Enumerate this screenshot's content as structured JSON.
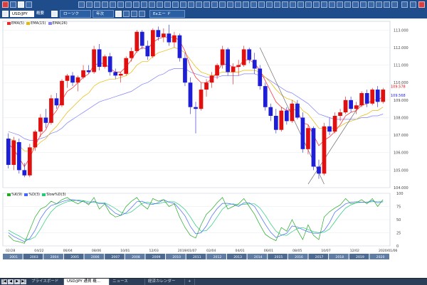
{
  "toolbar": {
    "symbol": "USD/JPY",
    "mode": "概要",
    "tab_chart": "ローソク",
    "tab_period": "年次",
    "tab_export": "Exエー ド",
    "colors": {
      "bar": "#1f4d8c",
      "hot": "#d94040"
    }
  },
  "main_legend": {
    "items": [
      {
        "label": "EMA(5)",
        "color": "#ff2020"
      },
      {
        "label": "EMA(15)",
        "color": "#e6b800"
      },
      {
        "label": "EMA(26)",
        "color": "#8080ff"
      }
    ]
  },
  "price_axis": [
    "113.000",
    "112.000",
    "111.000",
    "110.000",
    "109.000",
    "108.000",
    "107.000",
    "106.000",
    "105.000",
    "104.000"
  ],
  "price_tags": {
    "upper": "109.578",
    "lower": "109.568"
  },
  "sub_legend": {
    "items": [
      {
        "label": "%K(9)",
        "color": "#22aa22"
      },
      {
        "label": "%D(3)",
        "color": "#4466ff"
      },
      {
        "label": "Slow%D(3)",
        "color": "#22cc77"
      }
    ]
  },
  "sub_axis": [
    "100",
    "75",
    "50",
    "25",
    "0"
  ],
  "date_labels": [
    "02/28",
    "04/22",
    "06/04",
    "08/06",
    "10/01",
    "12/03",
    "2019/01/07",
    "02/04",
    "04/01",
    "06/01",
    "08/05",
    "10/07",
    "12/02",
    "2020/01/06"
  ],
  "year_labels": [
    "2001",
    "2003",
    "2004",
    "2005",
    "2006",
    "2007",
    "2008",
    "2009",
    "2010",
    "2011",
    "2012",
    "2013",
    "2014",
    "2015",
    "2016",
    "2017",
    "2018",
    "2019",
    "2020"
  ],
  "status": {
    "tab1": "プライスボード",
    "tab2": "USD/JPY 通貨 概...",
    "tab3": "ニュース",
    "tab4": "経済カレンダー",
    "add": "+"
  },
  "chart_data": {
    "type": "candlestick",
    "ylim": [
      104.0,
      113.5
    ],
    "candles": [
      {
        "o": 106.8,
        "h": 107.1,
        "l": 105.1,
        "c": 105.3
      },
      {
        "o": 105.3,
        "h": 106.9,
        "l": 105.0,
        "c": 106.7
      },
      {
        "o": 106.6,
        "h": 106.8,
        "l": 104.8,
        "c": 105.0
      },
      {
        "o": 105.0,
        "h": 105.4,
        "l": 104.6,
        "c": 104.7
      },
      {
        "o": 104.7,
        "h": 106.5,
        "l": 104.6,
        "c": 106.3
      },
      {
        "o": 106.3,
        "h": 107.3,
        "l": 106.1,
        "c": 107.2
      },
      {
        "o": 107.2,
        "h": 108.2,
        "l": 106.9,
        "c": 108.0
      },
      {
        "o": 108.0,
        "h": 108.5,
        "l": 107.4,
        "c": 107.7
      },
      {
        "o": 107.7,
        "h": 109.3,
        "l": 107.6,
        "c": 109.1
      },
      {
        "o": 109.1,
        "h": 109.4,
        "l": 108.5,
        "c": 108.7
      },
      {
        "o": 108.7,
        "h": 110.2,
        "l": 108.6,
        "c": 110.1
      },
      {
        "o": 110.1,
        "h": 110.5,
        "l": 109.7,
        "c": 110.4
      },
      {
        "o": 110.4,
        "h": 110.6,
        "l": 109.8,
        "c": 110.0
      },
      {
        "o": 110.0,
        "h": 110.4,
        "l": 109.5,
        "c": 110.3
      },
      {
        "o": 110.3,
        "h": 111.0,
        "l": 110.2,
        "c": 110.7
      },
      {
        "o": 110.7,
        "h": 111.0,
        "l": 110.5,
        "c": 110.6
      },
      {
        "o": 110.6,
        "h": 112.1,
        "l": 110.5,
        "c": 111.9
      },
      {
        "o": 111.9,
        "h": 112.2,
        "l": 110.7,
        "c": 110.9
      },
      {
        "o": 110.9,
        "h": 111.6,
        "l": 110.8,
        "c": 111.5
      },
      {
        "o": 111.5,
        "h": 111.7,
        "l": 110.4,
        "c": 110.6
      },
      {
        "o": 110.6,
        "h": 110.8,
        "l": 110.2,
        "c": 110.4
      },
      {
        "o": 110.4,
        "h": 110.6,
        "l": 110.0,
        "c": 110.5
      },
      {
        "o": 110.5,
        "h": 111.5,
        "l": 110.4,
        "c": 111.4
      },
      {
        "o": 111.4,
        "h": 112.0,
        "l": 111.2,
        "c": 111.8
      },
      {
        "o": 111.8,
        "h": 113.0,
        "l": 111.7,
        "c": 112.9
      },
      {
        "o": 112.9,
        "h": 113.0,
        "l": 111.9,
        "c": 112.1
      },
      {
        "o": 112.1,
        "h": 112.4,
        "l": 111.3,
        "c": 111.5
      },
      {
        "o": 111.5,
        "h": 113.1,
        "l": 111.4,
        "c": 113.0
      },
      {
        "o": 113.0,
        "h": 113.2,
        "l": 112.4,
        "c": 112.6
      },
      {
        "o": 112.6,
        "h": 113.1,
        "l": 112.3,
        "c": 112.8
      },
      {
        "o": 112.8,
        "h": 113.3,
        "l": 112.1,
        "c": 112.3
      },
      {
        "o": 112.3,
        "h": 112.9,
        "l": 112.0,
        "c": 112.7
      },
      {
        "o": 112.7,
        "h": 112.8,
        "l": 111.2,
        "c": 111.4
      },
      {
        "o": 111.4,
        "h": 111.7,
        "l": 109.8,
        "c": 110.0
      },
      {
        "o": 110.0,
        "h": 110.3,
        "l": 108.2,
        "c": 108.6
      },
      {
        "o": 108.6,
        "h": 108.9,
        "l": 107.1,
        "c": 108.5
      },
      {
        "o": 108.5,
        "h": 110.0,
        "l": 108.4,
        "c": 109.6
      },
      {
        "o": 109.6,
        "h": 110.2,
        "l": 109.2,
        "c": 110.0
      },
      {
        "o": 110.0,
        "h": 110.6,
        "l": 109.7,
        "c": 110.4
      },
      {
        "o": 110.4,
        "h": 111.1,
        "l": 110.2,
        "c": 111.0
      },
      {
        "o": 111.0,
        "h": 112.1,
        "l": 110.8,
        "c": 111.9
      },
      {
        "o": 111.9,
        "h": 112.0,
        "l": 110.4,
        "c": 110.6
      },
      {
        "o": 110.6,
        "h": 111.1,
        "l": 109.9,
        "c": 110.9
      },
      {
        "o": 110.9,
        "h": 111.3,
        "l": 110.4,
        "c": 111.0
      },
      {
        "o": 111.0,
        "h": 112.1,
        "l": 110.9,
        "c": 111.9
      },
      {
        "o": 111.9,
        "h": 112.0,
        "l": 111.1,
        "c": 111.3
      },
      {
        "o": 111.3,
        "h": 111.7,
        "l": 110.5,
        "c": 110.8
      },
      {
        "o": 110.8,
        "h": 111.0,
        "l": 109.6,
        "c": 109.8
      },
      {
        "o": 109.8,
        "h": 110.0,
        "l": 108.4,
        "c": 108.6
      },
      {
        "o": 108.6,
        "h": 108.8,
        "l": 107.8,
        "c": 108.1
      },
      {
        "o": 108.1,
        "h": 108.5,
        "l": 107.1,
        "c": 107.3
      },
      {
        "o": 107.3,
        "h": 108.6,
        "l": 107.2,
        "c": 108.4
      },
      {
        "o": 108.4,
        "h": 108.6,
        "l": 107.6,
        "c": 107.8
      },
      {
        "o": 107.8,
        "h": 109.0,
        "l": 107.7,
        "c": 108.8
      },
      {
        "o": 108.8,
        "h": 109.0,
        "l": 107.9,
        "c": 108.0
      },
      {
        "o": 108.0,
        "h": 108.3,
        "l": 106.0,
        "c": 106.2
      },
      {
        "o": 106.2,
        "h": 107.6,
        "l": 105.9,
        "c": 107.4
      },
      {
        "o": 107.4,
        "h": 107.5,
        "l": 105.0,
        "c": 105.2
      },
      {
        "o": 105.2,
        "h": 105.6,
        "l": 104.5,
        "c": 104.8
      },
      {
        "o": 104.8,
        "h": 107.7,
        "l": 104.7,
        "c": 107.5
      },
      {
        "o": 107.5,
        "h": 108.0,
        "l": 107.0,
        "c": 107.2
      },
      {
        "o": 107.2,
        "h": 108.3,
        "l": 107.1,
        "c": 108.1
      },
      {
        "o": 108.1,
        "h": 108.5,
        "l": 107.8,
        "c": 108.3
      },
      {
        "o": 108.3,
        "h": 109.2,
        "l": 108.2,
        "c": 109.0
      },
      {
        "o": 109.0,
        "h": 109.2,
        "l": 108.3,
        "c": 108.5
      },
      {
        "o": 108.5,
        "h": 108.9,
        "l": 108.2,
        "c": 108.7
      },
      {
        "o": 108.7,
        "h": 109.5,
        "l": 108.6,
        "c": 109.4
      },
      {
        "o": 109.4,
        "h": 109.6,
        "l": 108.6,
        "c": 108.8
      },
      {
        "o": 108.8,
        "h": 109.7,
        "l": 108.7,
        "c": 109.6
      },
      {
        "o": 109.6,
        "h": 109.8,
        "l": 108.6,
        "c": 108.9
      },
      {
        "o": 108.9,
        "h": 109.7,
        "l": 108.8,
        "c": 109.6
      }
    ],
    "ema_fast": [
      106.5,
      106.2,
      105.7,
      105.2,
      105.7,
      106.4,
      107.0,
      107.3,
      108.0,
      108.4,
      109.0,
      109.5,
      109.7,
      110.0,
      110.3,
      110.5,
      111.0,
      111.1,
      111.1,
      110.8,
      110.6,
      110.6,
      110.9,
      111.3,
      111.8,
      112.0,
      111.9,
      112.3,
      112.5,
      112.6,
      112.6,
      112.6,
      112.4,
      111.8,
      110.9,
      110.3,
      110.0,
      110.0,
      110.2,
      110.6,
      111.1,
      111.0,
      110.9,
      110.9,
      111.3,
      111.3,
      111.1,
      110.7,
      110.1,
      109.5,
      108.9,
      108.6,
      108.4,
      108.5,
      108.4,
      107.7,
      107.6,
      107.0,
      106.4,
      106.7,
      106.9,
      107.2,
      107.6,
      108.1,
      108.3,
      108.4,
      108.7,
      108.8,
      109.0,
      109.0,
      109.2
    ],
    "ema_mid": [
      106.8,
      106.7,
      106.4,
      106.1,
      106.1,
      106.3,
      106.6,
      106.8,
      107.2,
      107.5,
      107.9,
      108.3,
      108.6,
      108.9,
      109.2,
      109.4,
      109.8,
      110.0,
      110.1,
      110.2,
      110.2,
      110.3,
      110.4,
      110.6,
      111.0,
      111.2,
      111.2,
      111.5,
      111.7,
      111.8,
      111.9,
      112.0,
      111.9,
      111.7,
      111.3,
      110.9,
      110.6,
      110.5,
      110.4,
      110.5,
      110.6,
      110.6,
      110.6,
      110.6,
      110.7,
      110.7,
      110.7,
      110.6,
      110.3,
      110.0,
      109.6,
      109.3,
      109.1,
      109.0,
      108.8,
      108.4,
      108.2,
      107.8,
      107.4,
      107.4,
      107.4,
      107.4,
      107.5,
      107.7,
      107.8,
      107.9,
      108.1,
      108.2,
      108.4,
      108.4,
      108.6
    ],
    "ema_slow": [
      107.2,
      107.1,
      107.0,
      106.8,
      106.7,
      106.7,
      106.8,
      106.9,
      107.1,
      107.2,
      107.4,
      107.7,
      107.9,
      108.1,
      108.3,
      108.5,
      108.7,
      108.9,
      109.0,
      109.1,
      109.2,
      109.3,
      109.4,
      109.5,
      109.7,
      109.9,
      110.0,
      110.2,
      110.4,
      110.5,
      110.7,
      110.8,
      110.8,
      110.8,
      110.6,
      110.5,
      110.4,
      110.3,
      110.3,
      110.3,
      110.4,
      110.4,
      110.4,
      110.4,
      110.5,
      110.5,
      110.5,
      110.4,
      110.3,
      110.1,
      109.9,
      109.7,
      109.5,
      109.4,
      109.2,
      109.0,
      108.8,
      108.5,
      108.2,
      108.1,
      108.0,
      107.9,
      107.9,
      107.9,
      107.9,
      107.9,
      108.0,
      108.0,
      108.1,
      108.1,
      108.2
    ],
    "stoch_k": [
      20,
      10,
      8,
      5,
      30,
      55,
      70,
      75,
      85,
      80,
      88,
      92,
      85,
      80,
      86,
      78,
      92,
      70,
      80,
      62,
      55,
      58,
      75,
      85,
      92,
      78,
      70,
      90,
      85,
      88,
      75,
      80,
      55,
      35,
      20,
      15,
      40,
      60,
      70,
      82,
      92,
      70,
      75,
      80,
      90,
      75,
      60,
      40,
      22,
      15,
      10,
      35,
      28,
      50,
      30,
      12,
      40,
      20,
      12,
      55,
      65,
      72,
      78,
      90,
      80,
      82,
      88,
      80,
      90,
      75,
      88
    ],
    "stoch_d": [
      25,
      18,
      13,
      8,
      14,
      30,
      52,
      67,
      77,
      80,
      84,
      87,
      88,
      86,
      84,
      81,
      85,
      80,
      81,
      71,
      62,
      58,
      63,
      73,
      84,
      85,
      80,
      79,
      82,
      88,
      83,
      81,
      70,
      57,
      37,
      23,
      25,
      38,
      57,
      71,
      81,
      81,
      79,
      75,
      82,
      82,
      75,
      58,
      41,
      26,
      16,
      20,
      24,
      38,
      36,
      31,
      27,
      24,
      24,
      29,
      44,
      64,
      72,
      80,
      83,
      84,
      83,
      83,
      86,
      82,
      84
    ],
    "stoch_slow": [
      30,
      24,
      19,
      13,
      12,
      17,
      32,
      50,
      65,
      75,
      80,
      84,
      86,
      87,
      86,
      84,
      83,
      82,
      82,
      77,
      71,
      64,
      61,
      65,
      73,
      81,
      83,
      81,
      80,
      83,
      84,
      84,
      78,
      69,
      55,
      39,
      28,
      29,
      40,
      55,
      70,
      78,
      80,
      78,
      79,
      80,
      80,
      72,
      58,
      42,
      28,
      21,
      20,
      27,
      33,
      35,
      31,
      27,
      25,
      26,
      32,
      46,
      60,
      72,
      78,
      82,
      83,
      83,
      84,
      84,
      84
    ],
    "ylim_sub": [
      0,
      100
    ]
  }
}
